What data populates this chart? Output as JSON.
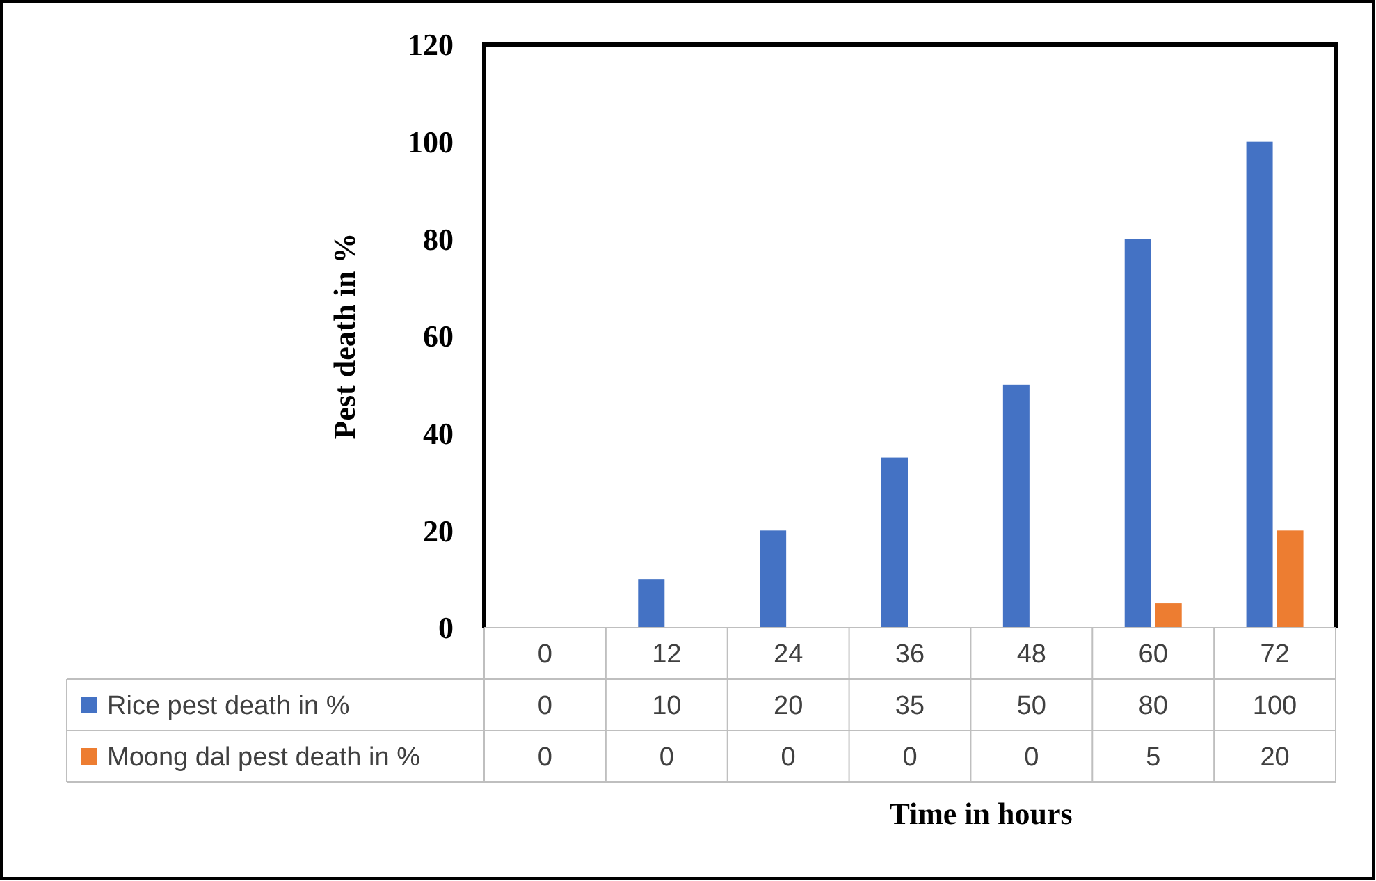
{
  "chart_data": {
    "type": "bar",
    "xlabel": "Time in hours",
    "ylabel": "Pest death in %",
    "categories": [
      "0",
      "12",
      "24",
      "36",
      "48",
      "60",
      "72"
    ],
    "series": [
      {
        "name": "Rice pest death in %",
        "color": "#4472c4",
        "values": [
          0,
          10,
          20,
          35,
          50,
          80,
          100
        ]
      },
      {
        "name": "Moong dal pest death in %",
        "color": "#ed7d31",
        "values": [
          0,
          0,
          0,
          0,
          0,
          5,
          20
        ]
      }
    ],
    "ylim": [
      0,
      120
    ],
    "yticks": [
      0,
      20,
      40,
      60,
      80,
      100,
      120
    ],
    "data_labels": true,
    "legend": "bottom",
    "grid": false
  }
}
